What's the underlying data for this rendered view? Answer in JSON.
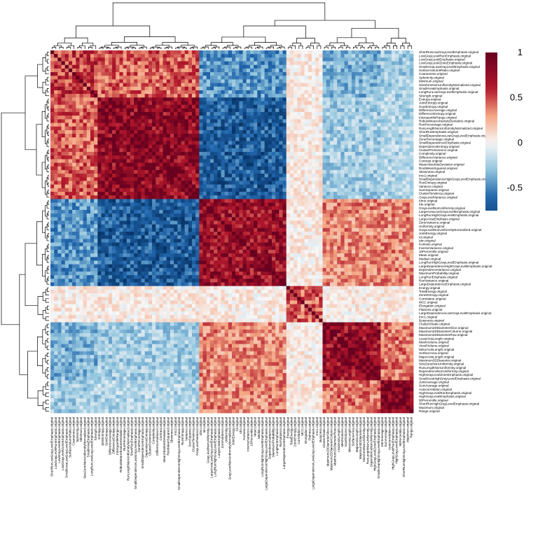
{
  "chart_data": {
    "type": "heatmap",
    "title": "",
    "xlabel": "",
    "ylabel": "",
    "clustered": true,
    "color_scale": {
      "min": -0.75,
      "max": 1,
      "low_color": "#053061",
      "mid_color": "#f7f7f7",
      "high_color": "#67001f",
      "ticks": [
        1,
        0.5,
        0,
        -0.5
      ],
      "tick_labels": [
        "1",
        "0.5",
        "0",
        "-0.5"
      ]
    },
    "labels": [
      "ShortRunLowGrayLevelEmphasis.original",
      "LowGrayLevelRunEmphasis.original",
      "LowGrayLevelEmphasis.original",
      "LowGrayLevelZoneEmphasis.original",
      "SmallAreaLowGrayLevelEmphasis.original",
      "SurfaceVolumeRatio.original",
      "Coarseness.original",
      "Sphericity.original",
      "Minimum.original",
      "SizeZoneNonUniformityNormalized.original",
      "SmallAreaEmphasis.original",
      "LongRunLowGrayLevelEmphasis.original",
      "Strength.original",
      "Entropy.original",
      "JointEntropy.original",
      "SumEntropy.original",
      "DifferenceAverage.original",
      "DifferenceEntropy.original",
      "InterquartileRange.original",
      "RobustMeanAbsoluteDeviation.original",
      "RunPercentage.original",
      "RunLengthNonUniformityNormalized.original",
      "ShortRunEmphasis.original",
      "SmallDependenceLowGrayLevelEmphasis.original",
      "ZonePercentage.original",
      "SmallDependenceEmphasis.original",
      "DependenceEntropy.original",
      "ClusterProminence.original",
      "Complexity.original",
      "DifferenceVariance.original",
      "Contrast.original",
      "MeanAbsoluteDeviation.original",
      "RootMeanSquared.original",
      "Skewness.original",
      "Imc2.original",
      "SmallDependenceHighGrayLevelEmphasis.original",
      "RunEntropy.original",
      "Variance.original",
      "SumSquares.original",
      "ClusterTendency.original",
      "GrayLevelVariance.original",
      "Idmn.original",
      "Idn.original",
      "GrayLevelNonUniformity.original",
      "LargeAreaLowGrayLevelEmphasis.original",
      "LongRunHighGrayLevelEmphasis.original",
      "LargeAreaEmphasis.original",
      "ZoneVariance.original",
      "Uniformity.original",
      "GrayLevelNonUniformityNormalized.original",
      "JointEnergy.original",
      "Id.original",
      "Idm.original",
      "Kurtosis.original",
      "InverseVariance.original",
      "10Percentile.original",
      "Mean.original",
      "Median.original",
      "LongRunHighGrayLevelEmphasis.original",
      "LargeDependenceHighGrayLevelEmphasis.original",
      "DependenceVariance.original",
      "MaximumProbability.original",
      "LongRunEmphasis.original",
      "RunVariance.original",
      "LargeDependenceEmphasis.original",
      "Energy.original",
      "TotalEnergy.original",
      "ZoneEntropy.original",
      "Correlation.original",
      "MCC.original",
      "Elongation.original",
      "Flatness.original",
      "LargeDependenceLowGrayLevelEmphasis.original",
      "Imc1.original",
      "Busyness.original",
      "ClusterShade.original",
      "Maximum2DDiameterSlice.original",
      "Maximum2DDiameterColumn.original",
      "Maximum2DDiameterRow.original",
      "LeastAxisLength.original",
      "MeshVolume.original",
      "VoxelVolume.original",
      "MinorAxisLength.original",
      "SurfaceArea.original",
      "MajorAxisLength.original",
      "Maximum3DDiameter.original",
      "SizeZoneNonUniformity.original",
      "RunLengthNonUniformity.original",
      "DependenceNonUniformity.original",
      "HighGrayLevelZoneEmphasis.original",
      "SmallAreaHighGrayLevelEmphasis.original",
      "JointAverage.original",
      "SumAverage.original",
      "Autocorrelation.original",
      "HighGrayLevelRunEmphasis.original",
      "HighGrayLevelEmphasis.original",
      "90Percentile.original",
      "ShortRunHighGrayLevelEmphasis.original",
      "Maximum.original",
      "Range.original"
    ],
    "cluster_blocks": [
      {
        "start": 0,
        "end": 12
      },
      {
        "start": 13,
        "end": 40
      },
      {
        "start": 41,
        "end": 64
      },
      {
        "start": 65,
        "end": 74
      },
      {
        "start": 75,
        "end": 90
      },
      {
        "start": 91,
        "end": 99
      }
    ],
    "block_mean_correlation": [
      [
        0.55,
        0.45,
        -0.45,
        0.05,
        -0.35,
        -0.25
      ],
      [
        0.45,
        0.8,
        -0.7,
        0.05,
        -0.25,
        -0.2
      ],
      [
        -0.45,
        -0.7,
        0.75,
        0.05,
        0.35,
        0.35
      ],
      [
        0.05,
        0.05,
        0.05,
        0.45,
        0.05,
        0.05
      ],
      [
        -0.35,
        -0.25,
        0.35,
        0.05,
        0.75,
        0.4
      ],
      [
        -0.25,
        -0.2,
        0.35,
        0.05,
        0.4,
        0.85
      ]
    ],
    "diagonal": 1
  }
}
